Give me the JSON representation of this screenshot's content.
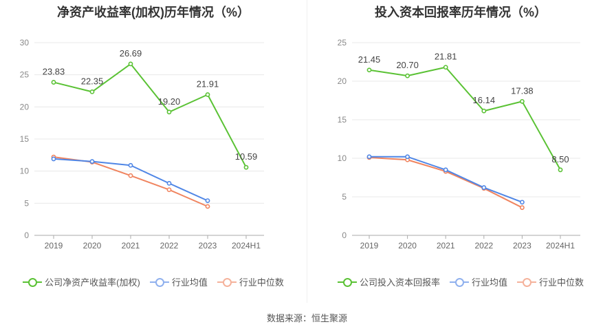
{
  "source": "数据来源：恒生聚源",
  "chart_data": [
    {
      "type": "line",
      "title": "净资产收益率(加权)历年情况（%）",
      "categories": [
        "2019",
        "2020",
        "2021",
        "2022",
        "2023",
        "2024H1"
      ],
      "ylim": [
        0,
        30
      ],
      "yticks": [
        0,
        5,
        10,
        15,
        20,
        25,
        30
      ],
      "grid": true,
      "legend_position": "bottom",
      "series": [
        {
          "name": "公司净资产收益率(加权)",
          "color": "#5ac234",
          "values": [
            23.83,
            22.35,
            26.69,
            19.2,
            21.91,
            10.59
          ],
          "labels": [
            "23.83",
            "22.35",
            "26.69",
            "19.20",
            "21.91",
            "10.59"
          ]
        },
        {
          "name": "行业均值",
          "color": "#4f86e6",
          "values": [
            11.9,
            11.5,
            10.9,
            8.1,
            5.4,
            null
          ]
        },
        {
          "name": "行业中位数",
          "color": "#f0845f",
          "values": [
            12.2,
            11.4,
            9.3,
            7.1,
            4.5,
            null
          ]
        }
      ]
    },
    {
      "type": "line",
      "title": "投入资本回报率历年情况（%）",
      "categories": [
        "2019",
        "2020",
        "2021",
        "2022",
        "2023",
        "2024H1"
      ],
      "ylim": [
        0,
        25
      ],
      "yticks": [
        0,
        5,
        10,
        15,
        20,
        25
      ],
      "grid": true,
      "legend_position": "bottom",
      "series": [
        {
          "name": "公司投入资本回报率",
          "color": "#5ac234",
          "values": [
            21.45,
            20.7,
            21.81,
            16.14,
            17.38,
            8.5
          ],
          "labels": [
            "21.45",
            "20.70",
            "21.81",
            "16.14",
            "17.38",
            "8.50"
          ]
        },
        {
          "name": "行业均值",
          "color": "#4f86e6",
          "values": [
            10.2,
            10.2,
            8.5,
            6.2,
            4.3,
            null
          ]
        },
        {
          "name": "行业中位数",
          "color": "#f0845f",
          "values": [
            10.1,
            9.8,
            8.3,
            6.1,
            3.6,
            null
          ]
        }
      ]
    }
  ]
}
